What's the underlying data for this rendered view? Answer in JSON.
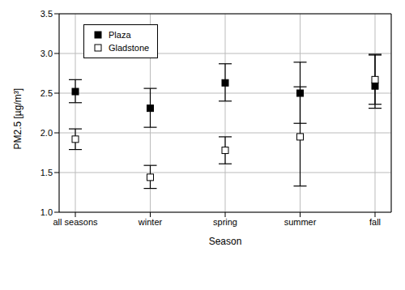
{
  "chart_data": {
    "type": "scatter",
    "x_label": "Season",
    "y_label": "PM2.5 [µg/m³]",
    "categories": [
      "all seasons",
      "winter",
      "spring",
      "summer",
      "fall"
    ],
    "series": [
      {
        "name": "Plaza",
        "color": "#000000",
        "marker": "square",
        "values": [
          2.52,
          2.31,
          2.63,
          2.5,
          2.59
        ],
        "errors": [
          [
            0.14,
            0.15
          ],
          [
            0.24,
            0.25
          ],
          [
            0.23,
            0.24
          ],
          [
            0.38,
            0.39
          ],
          [
            0.28,
            0.39
          ]
        ]
      },
      {
        "name": "Gladstone",
        "color": "#000000",
        "marker": "open-square",
        "values": [
          1.92,
          1.44,
          1.78,
          1.95,
          2.67
        ],
        "errors": [
          [
            0.13,
            0.13
          ],
          [
            0.14,
            0.15
          ],
          [
            0.17,
            0.17
          ],
          [
            0.62,
            0.63
          ],
          [
            0.31,
            0.32
          ]
        ]
      }
    ],
    "ylim": [
      1,
      3.5
    ],
    "yticks": [
      {
        "value": 1,
        "label": "1.0"
      },
      {
        "value": 1.5,
        "label": "1.5"
      },
      {
        "value": 2,
        "label": "2.0"
      },
      {
        "value": 2.5,
        "label": "2.5"
      },
      {
        "value": 3,
        "label": "3.0"
      },
      {
        "value": 3.5,
        "label": "3.5"
      }
    ],
    "grid": true,
    "legend": "upper left"
  }
}
